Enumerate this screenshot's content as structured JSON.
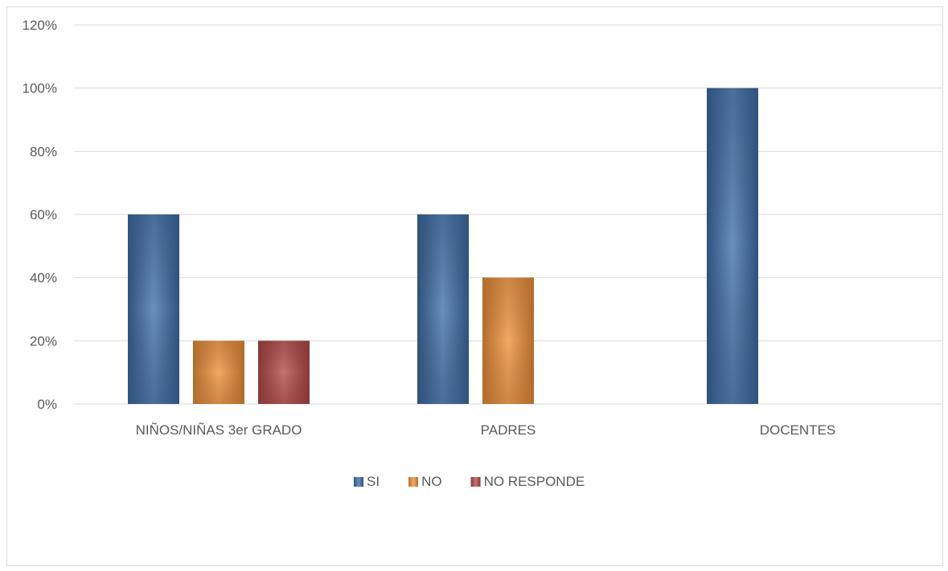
{
  "chart_data": {
    "type": "bar",
    "categories": [
      "NIÑOS/NIÑAS 3er GRADO",
      "PADRES",
      "DOCENTES"
    ],
    "series": [
      {
        "name": "SI",
        "values": [
          60,
          60,
          100
        ],
        "color": "#3f6fa8"
      },
      {
        "name": "NO",
        "values": [
          20,
          40,
          null
        ],
        "color": "#f0913a"
      },
      {
        "name": "NO RESPONDE",
        "values": [
          20,
          null,
          null
        ],
        "color": "#b54a48"
      }
    ],
    "ylim": [
      0,
      120
    ],
    "y_ticks": [
      0,
      20,
      40,
      60,
      80,
      100,
      120
    ],
    "y_tick_labels": [
      "0%",
      "20%",
      "40%",
      "60%",
      "80%",
      "100%",
      "120%"
    ],
    "grid": true,
    "legend_position": "bottom"
  }
}
